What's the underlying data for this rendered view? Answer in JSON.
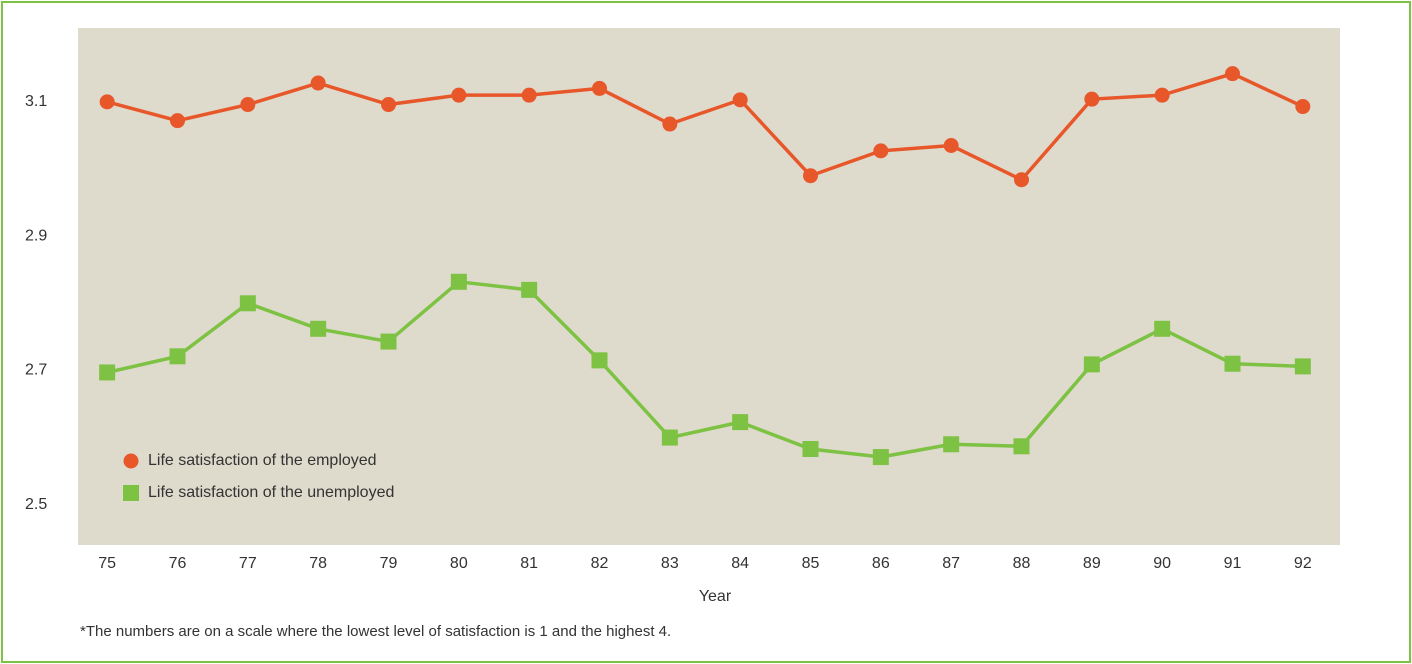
{
  "chart_data": {
    "type": "line",
    "categories": [
      "75",
      "76",
      "77",
      "78",
      "79",
      "80",
      "81",
      "82",
      "83",
      "84",
      "85",
      "86",
      "87",
      "88",
      "89",
      "90",
      "91",
      "92"
    ],
    "series": [
      {
        "name": "Life satisfaction of the employed",
        "color": "#e8572a",
        "marker": "circle",
        "values": [
          3.1,
          3.072,
          3.096,
          3.128,
          3.096,
          3.11,
          3.11,
          3.12,
          3.067,
          3.103,
          2.99,
          3.027,
          3.035,
          2.984,
          3.104,
          3.11,
          3.142,
          3.093
        ]
      },
      {
        "name": "Life satisfaction of the unemployed",
        "color": "#7dc242",
        "marker": "square",
        "values": [
          2.697,
          2.721,
          2.8,
          2.762,
          2.743,
          2.832,
          2.82,
          2.715,
          2.6,
          2.623,
          2.583,
          2.571,
          2.59,
          2.587,
          2.709,
          2.762,
          2.71,
          2.706
        ]
      }
    ],
    "ylim": [
      2.44,
      3.21
    ],
    "yticks": [
      2.5,
      2.7,
      2.9,
      3.1
    ],
    "xlabel": "Year",
    "footnote": "*The numbers are on a scale where the lowest level of satisfaction is 1 and the highest 4.",
    "legend": "lower-left",
    "grid": false
  }
}
